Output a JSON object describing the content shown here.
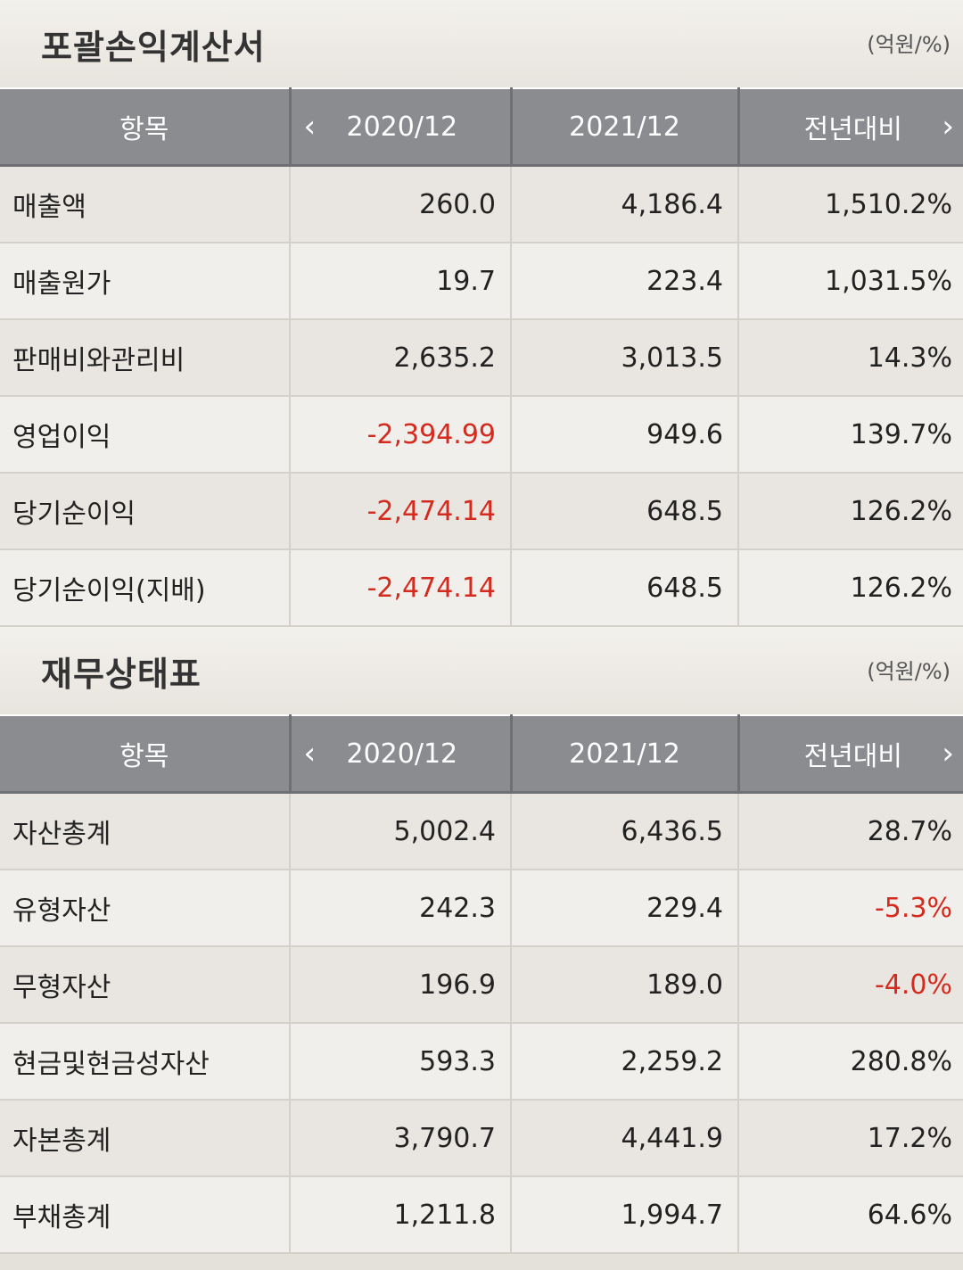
{
  "income": {
    "title": "포괄손익계산서",
    "unit": "(억원/%)",
    "header": {
      "item": "항목",
      "y1": "2020/12",
      "y2": "2021/12",
      "yoy": "전년대비"
    },
    "rows": [
      {
        "label": "매출액",
        "v1": "260.0",
        "v2": "4,186.4",
        "yoy": "1,510.2%"
      },
      {
        "label": "매출원가",
        "v1": "19.7",
        "v2": "223.4",
        "yoy": "1,031.5%"
      },
      {
        "label": "판매비와관리비",
        "v1": "2,635.2",
        "v2": "3,013.5",
        "yoy": "14.3%"
      },
      {
        "label": "영업이익",
        "v1": "-2,394.99",
        "v2": "949.6",
        "yoy": "139.7%"
      },
      {
        "label": "당기순이익",
        "v1": "-2,474.14",
        "v2": "648.5",
        "yoy": "126.2%"
      },
      {
        "label": "당기순이익(지배)",
        "v1": "-2,474.14",
        "v2": "648.5",
        "yoy": "126.2%"
      }
    ]
  },
  "balance": {
    "title": "재무상태표",
    "unit": "(억원/%)",
    "header": {
      "item": "항목",
      "y1": "2020/12",
      "y2": "2021/12",
      "yoy": "전년대비"
    },
    "rows": [
      {
        "label": "자산총계",
        "v1": "5,002.4",
        "v2": "6,436.5",
        "yoy": "28.7%"
      },
      {
        "label": "유형자산",
        "v1": "242.3",
        "v2": "229.4",
        "yoy": "-5.3%"
      },
      {
        "label": "무형자산",
        "v1": "196.9",
        "v2": "189.0",
        "yoy": "-4.0%"
      },
      {
        "label": "현금및현금성자산",
        "v1": "593.3",
        "v2": "2,259.2",
        "yoy": "280.8%"
      },
      {
        "label": "자본총계",
        "v1": "3,790.7",
        "v2": "4,441.9",
        "yoy": "17.2%"
      },
      {
        "label": "부채총계",
        "v1": "1,211.8",
        "v2": "1,994.7",
        "yoy": "64.6%"
      }
    ]
  },
  "icons": {
    "prev": "chevron-left-icon",
    "next": "chevron-right-icon"
  },
  "colors": {
    "header_bg": "#8b8c90",
    "negative": "#d52a1e",
    "page_bg": "#eeebe6"
  }
}
